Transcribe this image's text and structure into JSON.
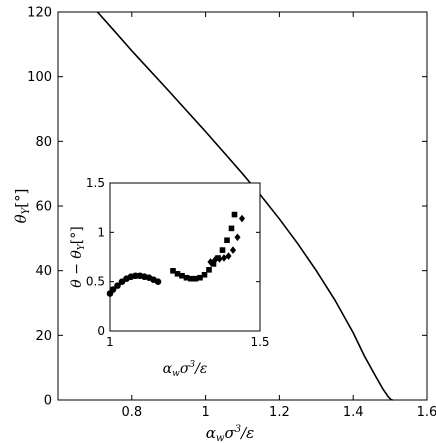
{
  "chart_data": [
    {
      "type": "line",
      "title": "",
      "xlabel": "α_w σ³/ε",
      "ylabel": "θ_Y [°]",
      "xlim": [
        0.6,
        1.6
      ],
      "ylim": [
        0,
        120
      ],
      "xticks": [
        "0.8",
        "1",
        "1.2",
        "1.4",
        "1.6"
      ],
      "yticks": [
        "0",
        "20",
        "40",
        "60",
        "80",
        "100",
        "120"
      ],
      "grid": false,
      "series": [
        {
          "line_color": "#000000",
          "x": [
            0.707,
            0.75,
            0.8,
            0.85,
            0.9,
            0.95,
            1.0,
            1.05,
            1.1,
            1.15,
            1.2,
            1.25,
            1.3,
            1.35,
            1.4,
            1.43,
            1.46,
            1.48,
            1.495,
            1.503,
            1.507
          ],
          "y": [
            120,
            114.5,
            108,
            101.8,
            95.6,
            89.3,
            83.0,
            76.5,
            70.0,
            63.2,
            56.0,
            48.3,
            40.0,
            31.0,
            20.8,
            13.7,
            7.5,
            3.5,
            1.0,
            0.1,
            0
          ]
        }
      ]
    },
    {
      "type": "scatter",
      "title": "",
      "xlabel": "α_w σ³/ε",
      "ylabel": "θ − θ_Y [°]",
      "xlim": [
        1.0,
        1.5
      ],
      "ylim": [
        0,
        1.5
      ],
      "xticks": [
        "1",
        "1.5"
      ],
      "yticks": [
        "0",
        "0.5",
        "1",
        "1.5"
      ],
      "grid": false,
      "series": [
        {
          "marker": "circle",
          "color": "#000000",
          "x": [
            1.0,
            1.01,
            1.025,
            1.04,
            1.055,
            1.07,
            1.085,
            1.1,
            1.115,
            1.13,
            1.145,
            1.16
          ],
          "y": [
            0.38,
            0.42,
            0.46,
            0.5,
            0.53,
            0.55,
            0.56,
            0.56,
            0.55,
            0.54,
            0.52,
            0.5
          ]
        },
        {
          "marker": "square",
          "color": "#000000",
          "x": [
            1.21,
            1.225,
            1.24,
            1.255,
            1.27,
            1.285,
            1.3,
            1.315,
            1.33,
            1.345,
            1.36,
            1.375,
            1.39,
            1.405,
            1.415
          ],
          "y": [
            0.61,
            0.58,
            0.56,
            0.54,
            0.53,
            0.53,
            0.54,
            0.57,
            0.62,
            0.68,
            0.74,
            0.82,
            0.92,
            1.04,
            1.18
          ]
        },
        {
          "marker": "diamond",
          "color": "#000000",
          "x": [
            1.335,
            1.35,
            1.365,
            1.38,
            1.395,
            1.41,
            1.425,
            1.44
          ],
          "y": [
            0.7,
            0.72,
            0.73,
            0.74,
            0.76,
            0.82,
            0.95,
            1.14
          ]
        }
      ]
    }
  ]
}
